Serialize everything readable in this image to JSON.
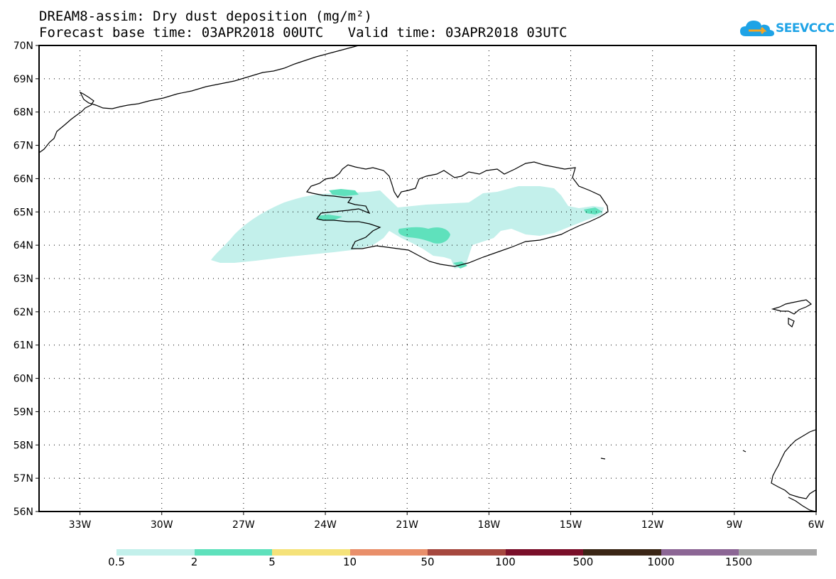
{
  "title": {
    "line1": "DREAM8-assim: Dry dust deposition (mg/m²)",
    "line2": "Forecast base time: 03APR2018 00UTC   Valid time: 03APR2018 03UTC"
  },
  "logo": {
    "text": "SEEVCCC",
    "icon": "cloud-logo-icon",
    "color": "#1ea3e6"
  },
  "map": {
    "lon_range": [
      -34.5,
      -6
    ],
    "lat_range": [
      56,
      70
    ],
    "lat_labels": [
      "70N",
      "69N",
      "68N",
      "67N",
      "66N",
      "65N",
      "64N",
      "63N",
      "62N",
      "61N",
      "60N",
      "59N",
      "58N",
      "57N",
      "56N"
    ],
    "lat_values": [
      70,
      69,
      68,
      67,
      66,
      65,
      64,
      63,
      62,
      61,
      60,
      59,
      58,
      57,
      56
    ],
    "lon_labels": [
      "33W",
      "30W",
      "27W",
      "24W",
      "21W",
      "18W",
      "15W",
      "12W",
      "9W",
      "6W"
    ],
    "lon_values": [
      -33,
      -30,
      -27,
      -24,
      -21,
      -18,
      -15,
      -12,
      -9,
      -6
    ],
    "grid": "dotted",
    "regions": [
      "Iceland",
      "Greenland (east coast)",
      "Faroe Islands",
      "Scotland (north-west)"
    ],
    "deposition_fields": [
      {
        "level": "0.5-2",
        "color": "#c3f0eb",
        "area": "plume from west of Iceland across Iceland, 63.5N-65.5N, 28W-14W"
      },
      {
        "level": "2-5",
        "color": "#5fe1bc",
        "area": "patches over south-central Iceland, Snaefellsnes, Westfjords, east coast"
      }
    ]
  },
  "colorbar": {
    "colors": [
      "#c3f0eb",
      "#5fe1bc",
      "#f5e27a",
      "#e98f6a",
      "#a6483f",
      "#7a0f29",
      "#3b2616",
      "#8c6695",
      "#a6a6a6"
    ],
    "labels": [
      "0.5",
      "2",
      "5",
      "10",
      "50",
      "100",
      "500",
      "1000",
      "1500"
    ]
  }
}
